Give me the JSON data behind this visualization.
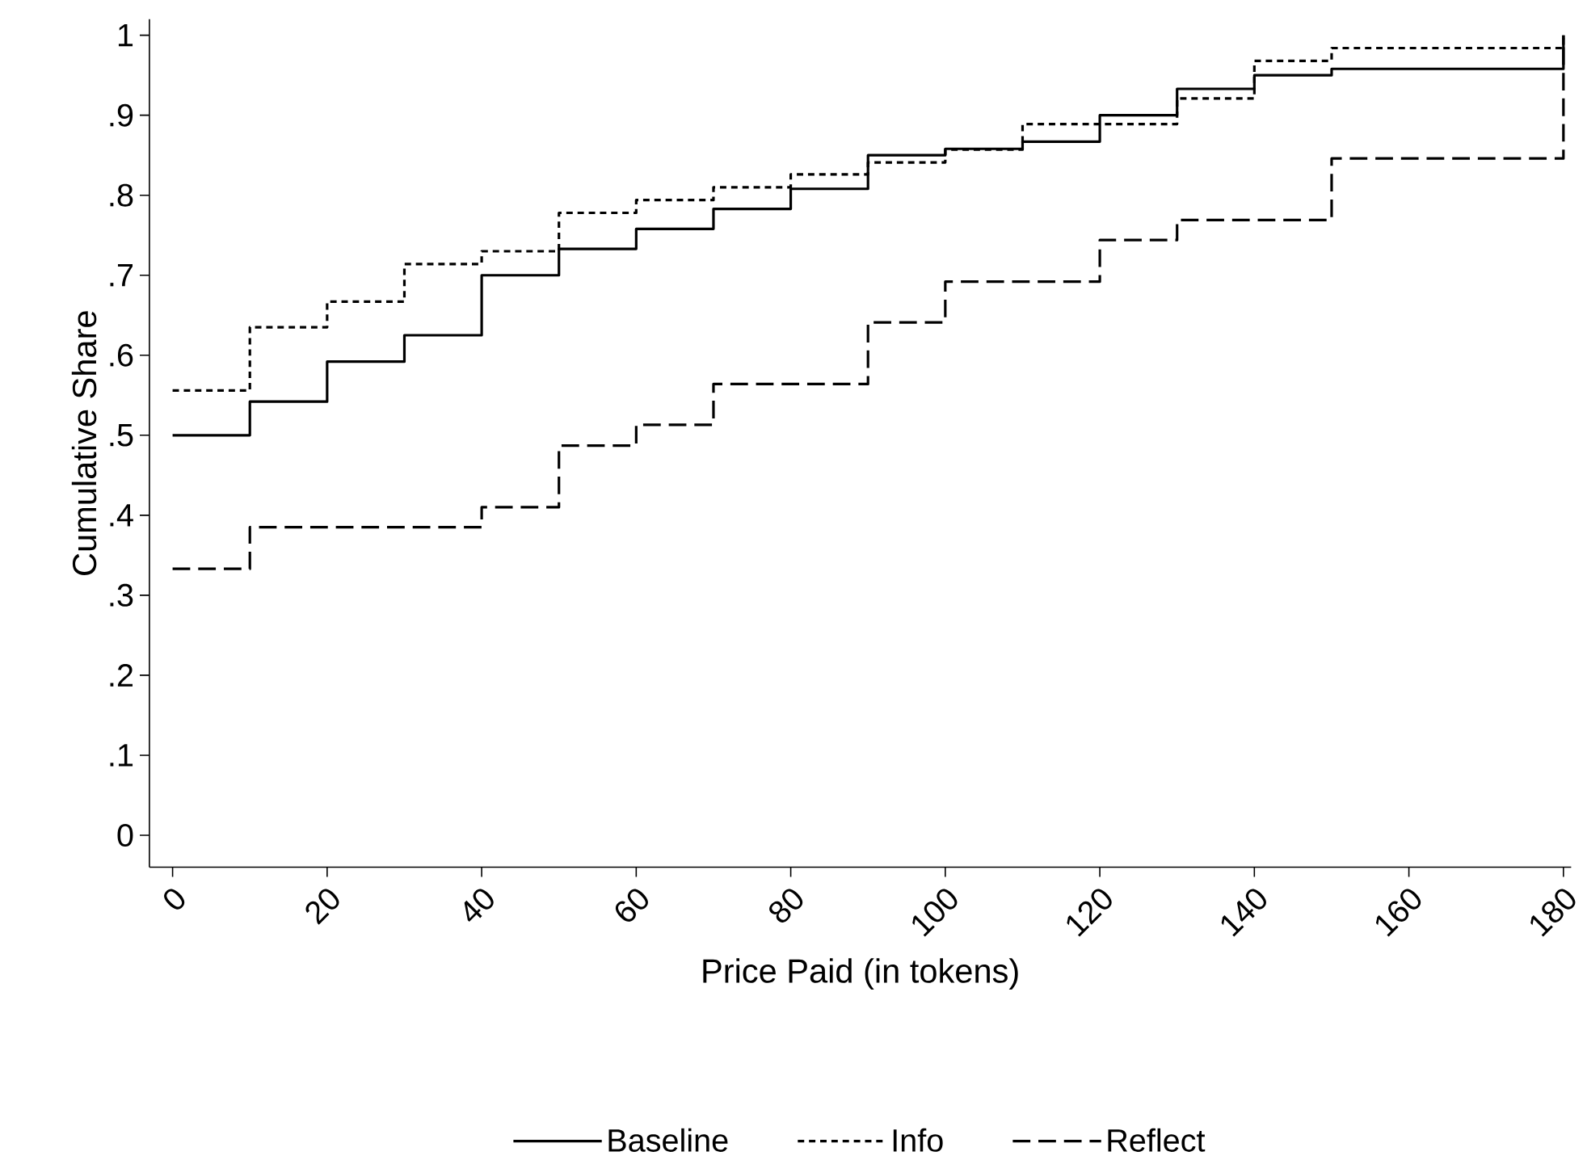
{
  "chart_data": {
    "type": "step",
    "xlabel": "Price Paid (in tokens)",
    "ylabel": "Cumulative Share",
    "x": [
      0,
      10,
      20,
      30,
      40,
      50,
      60,
      70,
      80,
      90,
      100,
      110,
      120,
      130,
      140,
      150,
      160,
      170,
      180
    ],
    "series": [
      {
        "name": "Baseline",
        "color": "#000000",
        "line_style": "solid",
        "values": [
          0.5,
          0.542,
          0.592,
          0.625,
          0.7,
          0.733,
          0.758,
          0.783,
          0.808,
          0.85,
          0.858,
          0.867,
          0.9,
          0.933,
          0.95,
          0.958,
          0.958,
          0.958,
          1
        ]
      },
      {
        "name": "Info",
        "color": "#000000",
        "line_style": "dotted",
        "values": [
          0.556,
          0.635,
          0.667,
          0.714,
          0.73,
          0.778,
          0.794,
          0.81,
          0.826,
          0.841,
          0.857,
          0.889,
          0.889,
          0.921,
          0.968,
          0.984,
          0.984,
          0.984,
          1
        ]
      },
      {
        "name": "Reflect",
        "color": "#000000",
        "line_style": "dashed",
        "values": [
          0.333,
          0.385,
          0.385,
          0.385,
          0.41,
          0.487,
          0.513,
          0.564,
          0.564,
          0.641,
          0.692,
          0.692,
          0.744,
          0.769,
          0.769,
          0.846,
          0.846,
          0.846,
          1
        ]
      }
    ],
    "xlim": [
      -3,
      181
    ],
    "ylim": [
      -0.04,
      1.02
    ],
    "xticks": [
      0,
      20,
      40,
      60,
      80,
      100,
      120,
      140,
      160,
      180
    ],
    "yticks": [
      0,
      {
        "value": 0.1,
        "label": ".1"
      },
      {
        "value": 0.2,
        "label": ".2"
      },
      {
        "value": 0.3,
        "label": ".3"
      },
      {
        "value": 0.4,
        "label": ".4"
      },
      {
        "value": 0.5,
        "label": ".5"
      },
      {
        "value": 0.6,
        "label": ".6"
      },
      {
        "value": 0.7,
        "label": ".7"
      },
      {
        "value": 0.8,
        "label": ".8"
      },
      {
        "value": 0.9,
        "label": ".9"
      },
      1
    ],
    "grid": false,
    "legend": "bottom",
    "marker": "none"
  }
}
